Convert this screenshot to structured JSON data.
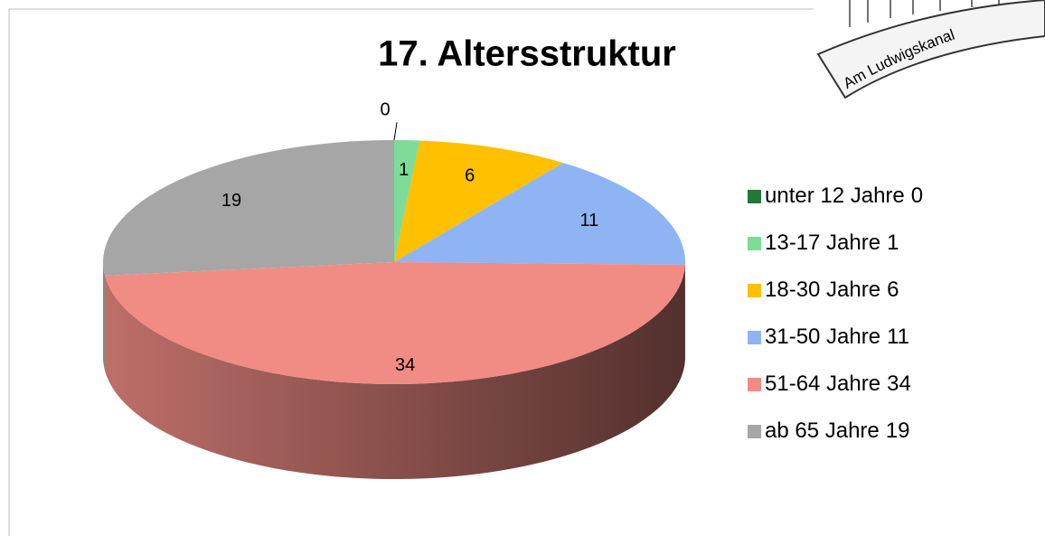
{
  "chart_data": {
    "type": "pie3d",
    "title": "17. Altersstruktur",
    "categories": [
      "unter 12 Jahre",
      "13-17 Jahre",
      "18-30 Jahre",
      "31-50 Jahre",
      "51-64 Jahre",
      "ab 65 Jahre"
    ],
    "values": [
      0,
      1,
      6,
      11,
      34,
      19
    ],
    "colors": [
      "#1f7a3a",
      "#7ddc98",
      "#ffc000",
      "#8fb4f4",
      "#f08c84",
      "#a6a6a6"
    ],
    "legend": "right"
  },
  "logo": {
    "text": "Am Ludwigskanal"
  }
}
